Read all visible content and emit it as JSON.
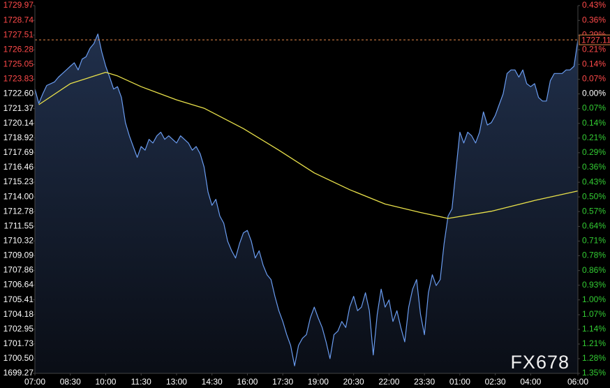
{
  "chart_data": {
    "type": "line",
    "watermark": "FX678",
    "current_price": 1727.11,
    "current_price_color": "#e8894a",
    "up_color": "#ff4a4a",
    "down_color": "#33cc33",
    "neutral_color": "#ffffff",
    "area_fill": true,
    "xlim": [
      0,
      1380
    ],
    "xticks": [
      {
        "value": 0,
        "label": "07:00"
      },
      {
        "value": 90,
        "label": "08:30"
      },
      {
        "value": 180,
        "label": "10:00"
      },
      {
        "value": 270,
        "label": "11:30"
      },
      {
        "value": 360,
        "label": "13:00"
      },
      {
        "value": 450,
        "label": "14:30"
      },
      {
        "value": 540,
        "label": "16:00"
      },
      {
        "value": 630,
        "label": "17:30"
      },
      {
        "value": 720,
        "label": "19:00"
      },
      {
        "value": 810,
        "label": "20:30"
      },
      {
        "value": 900,
        "label": "22:00"
      },
      {
        "value": 990,
        "label": "23:30"
      },
      {
        "value": 1080,
        "label": "01:00"
      },
      {
        "value": 1170,
        "label": "02:30"
      },
      {
        "value": 1260,
        "label": "04:00"
      },
      {
        "value": 1380,
        "label": "06:00"
      }
    ],
    "ylim": [
      1699.27,
      1729.97
    ],
    "yticks": [
      1729.97,
      1728.74,
      1727.51,
      1726.28,
      1725.05,
      1723.83,
      {
        "value": 1722.6,
        "label": "1722.60"
      },
      1721.37,
      1720.14,
      1718.92,
      1717.69,
      1716.46,
      1715.23,
      {
        "value": 1714,
        "label": "1714.00"
      },
      1712.78,
      1711.55,
      1710.32,
      1709.09,
      1707.86,
      1706.64,
      1705.41,
      1704.18,
      1702.95,
      1701.73,
      {
        "value": 1700.5,
        "label": "1700.50"
      },
      1699.27
    ],
    "y2lim": [
      -1.354,
      0.428
    ],
    "y2ticks": [
      {
        "value": 0.428,
        "label": "0.43%"
      },
      {
        "value": 0.356,
        "label": "0.36%"
      },
      {
        "value": 0.285,
        "label": "0.29%"
      },
      {
        "value": 0.214,
        "label": "0.21%"
      },
      {
        "value": 0.143,
        "label": "0.14%"
      },
      {
        "value": 0.071,
        "label": "0.07%"
      },
      {
        "value": 0,
        "label": "0.00%"
      },
      {
        "value": -0.071,
        "label": "0.07%"
      },
      {
        "value": -0.143,
        "label": "0.14%"
      },
      {
        "value": -0.214,
        "label": "0.21%"
      },
      {
        "value": -0.285,
        "label": "0.29%"
      },
      {
        "value": -0.356,
        "label": "0.36%"
      },
      {
        "value": -0.428,
        "label": "0.43%"
      },
      {
        "value": -0.499,
        "label": "0.50%"
      },
      {
        "value": -0.57,
        "label": "0.57%"
      },
      {
        "value": -0.642,
        "label": "0.64%"
      },
      {
        "value": -0.713,
        "label": "0.71%"
      },
      {
        "value": -0.784,
        "label": "0.78%"
      },
      {
        "value": -0.856,
        "label": "0.86%"
      },
      {
        "value": -0.927,
        "label": "0.93%"
      },
      {
        "value": -0.998,
        "label": "1.00%"
      },
      {
        "value": -1.07,
        "label": "1.07%"
      },
      {
        "value": -1.141,
        "label": "1.14%"
      },
      {
        "value": -1.212,
        "label": "1.21%"
      },
      {
        "value": -1.283,
        "label": "1.28%"
      },
      {
        "value": -1.354,
        "label": "1.35%"
      }
    ],
    "x": [
      0,
      10,
      20,
      30,
      40,
      50,
      60,
      70,
      80,
      90,
      100,
      110,
      120,
      130,
      140,
      150,
      160,
      170,
      180,
      190,
      200,
      210,
      220,
      230,
      240,
      250,
      260,
      270,
      280,
      290,
      300,
      310,
      320,
      330,
      340,
      350,
      360,
      370,
      380,
      390,
      400,
      410,
      420,
      430,
      440,
      450,
      460,
      470,
      480,
      490,
      500,
      510,
      520,
      530,
      540,
      550,
      560,
      570,
      580,
      590,
      600,
      610,
      620,
      630,
      640,
      650,
      660,
      670,
      680,
      690,
      700,
      710,
      720,
      730,
      740,
      750,
      760,
      770,
      780,
      790,
      800,
      810,
      820,
      830,
      840,
      850,
      860,
      870,
      880,
      890,
      900,
      910,
      920,
      930,
      940,
      950,
      960,
      970,
      980,
      990,
      1000,
      1010,
      1020,
      1030,
      1040,
      1050,
      1060,
      1070,
      1080,
      1090,
      1100,
      1110,
      1120,
      1130,
      1140,
      1150,
      1160,
      1170,
      1180,
      1190,
      1200,
      1210,
      1220,
      1230,
      1240,
      1250,
      1260,
      1270,
      1280,
      1290,
      1300,
      1310,
      1320,
      1330,
      1340,
      1350,
      1360,
      1370,
      1380
    ],
    "series": [
      {
        "color": "#6a9cf0",
        "values": [
          1723.0,
          1721.8,
          1722.6,
          1723.3,
          1723.45,
          1723.6,
          1724.0,
          1724.3,
          1724.6,
          1724.9,
          1725.2,
          1724.6,
          1725.5,
          1725.7,
          1726.4,
          1726.8,
          1727.6,
          1726.1,
          1724.9,
          1724.0,
          1723.0,
          1723.2,
          1722.3,
          1720.2,
          1719.1,
          1718.2,
          1717.3,
          1718.2,
          1717.9,
          1718.8,
          1718.5,
          1719.1,
          1719.4,
          1718.8,
          1719.1,
          1718.8,
          1718.5,
          1719.1,
          1718.8,
          1718.5,
          1717.9,
          1718.2,
          1717.6,
          1716.5,
          1714.4,
          1713.3,
          1713.8,
          1712.4,
          1711.8,
          1710.3,
          1709.5,
          1708.9,
          1710.1,
          1711.0,
          1711.2,
          1710.3,
          1708.9,
          1709.5,
          1708.3,
          1707.5,
          1707.1,
          1705.7,
          1704.5,
          1703.6,
          1702.5,
          1701.6,
          1699.9,
          1701.6,
          1702.2,
          1702.5,
          1703.9,
          1704.8,
          1703.9,
          1703.1,
          1701.9,
          1700.5,
          1702.5,
          1702.8,
          1703.6,
          1703.1,
          1704.8,
          1705.7,
          1704.5,
          1704.8,
          1706.0,
          1704.5,
          1700.8,
          1704.2,
          1706.3,
          1704.8,
          1705.4,
          1703.6,
          1704.5,
          1703.1,
          1701.9,
          1704.8,
          1706.3,
          1707.1,
          1704.2,
          1702.5,
          1706.0,
          1707.5,
          1706.6,
          1707.1,
          1710.1,
          1712.4,
          1713.0,
          1716.2,
          1719.4,
          1718.5,
          1719.4,
          1719.1,
          1718.5,
          1719.4,
          1721.1,
          1720.0,
          1720.2,
          1720.8,
          1721.7,
          1722.6,
          1724.3,
          1724.6,
          1724.6,
          1724.0,
          1724.6,
          1723.45,
          1723.2,
          1723.45,
          1722.3,
          1722.0,
          1722.0,
          1723.7,
          1724.3,
          1724.3,
          1724.3,
          1724.6,
          1724.6,
          1724.9,
          1727.11
        ]
      },
      {
        "color": "#e8e04a",
        "x": [
          10,
          90,
          180,
          210,
          270,
          360,
          430,
          530,
          620,
          710,
          800,
          890,
          980,
          1050,
          1160,
          1270,
          1380
        ],
        "values": [
          1721.7,
          1723.45,
          1724.4,
          1724.1,
          1723.2,
          1722.1,
          1721.4,
          1719.7,
          1717.9,
          1716.0,
          1714.6,
          1713.4,
          1712.7,
          1712.2,
          1712.8,
          1713.7,
          1714.5
        ]
      }
    ]
  }
}
